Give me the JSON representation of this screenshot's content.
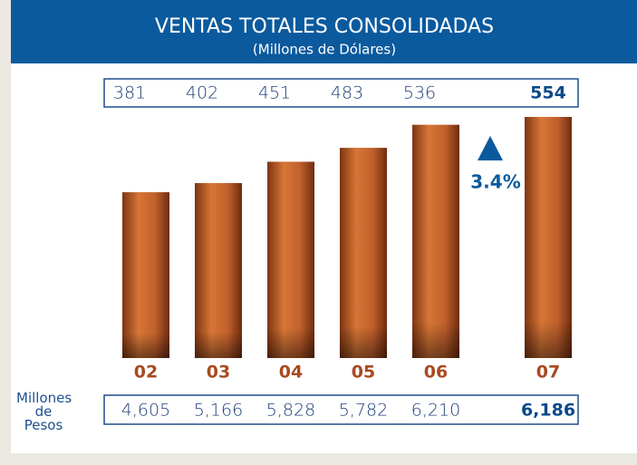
{
  "chart_data": {
    "type": "bar",
    "title": "VENTAS TOTALES CONSOLIDADAS",
    "subtitle": "(Millones de Dólares)",
    "categories": [
      "02",
      "03",
      "04",
      "05",
      "06",
      "07"
    ],
    "series": [
      {
        "name": "Millones de Dólares",
        "color": "#c0602c",
        "values": [
          381,
          402,
          451,
          483,
          536,
          554
        ]
      },
      {
        "name": "Millones de Pesos",
        "values": [
          4605,
          5166,
          5828,
          5782,
          6210,
          6186
        ],
        "value_labels": [
          "4,605",
          "5,166",
          "5,828",
          "5,782",
          "6,210",
          "6,186"
        ]
      }
    ],
    "annotation": "3.4%"
  }
}
